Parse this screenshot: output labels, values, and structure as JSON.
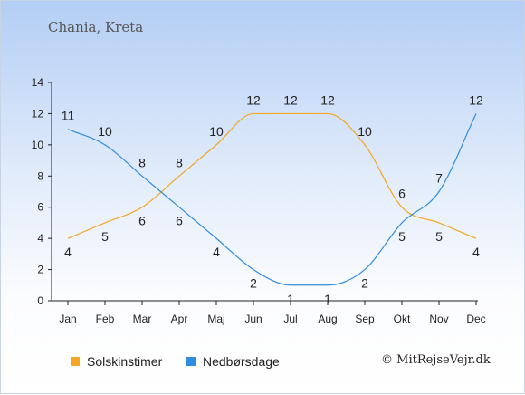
{
  "title": "Chania, Kreta",
  "legend": {
    "sun_label": "Solskinstimer",
    "rain_label": "Nedbørsdage"
  },
  "credit": "© MitRejseVejr.dk",
  "colors": {
    "sun": "#f5a623",
    "rain": "#2f8de0",
    "axis": "#222222"
  },
  "chart_data": {
    "type": "line",
    "categories": [
      "Jan",
      "Feb",
      "Mar",
      "Apr",
      "Maj",
      "Jun",
      "Jul",
      "Aug",
      "Sep",
      "Okt",
      "Nov",
      "Dec"
    ],
    "series": [
      {
        "name": "Solskinstimer",
        "values": [
          4,
          5,
          6,
          8,
          10,
          12,
          12,
          12,
          10,
          6,
          5,
          4
        ]
      },
      {
        "name": "Nedbørsdage",
        "values": [
          11,
          10,
          8,
          6,
          4,
          2,
          1,
          1,
          2,
          5,
          7,
          12
        ]
      }
    ],
    "ylim": [
      0,
      14
    ],
    "yticks": [
      0,
      2,
      4,
      6,
      8,
      10,
      12,
      14
    ],
    "grid": false,
    "legend_position": "bottom"
  }
}
